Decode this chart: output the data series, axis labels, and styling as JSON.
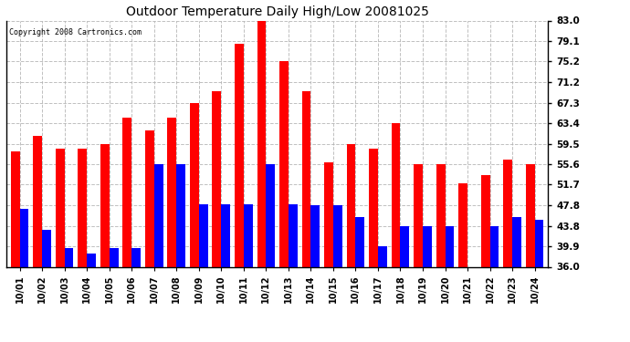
{
  "title": "Outdoor Temperature Daily High/Low 20081025",
  "copyright": "Copyright 2008 Cartronics.com",
  "dates": [
    "10/01",
    "10/02",
    "10/03",
    "10/04",
    "10/05",
    "10/06",
    "10/07",
    "10/08",
    "10/09",
    "10/10",
    "10/11",
    "10/12",
    "10/13",
    "10/14",
    "10/15",
    "10/16",
    "10/17",
    "10/18",
    "10/19",
    "10/20",
    "10/21",
    "10/22",
    "10/23",
    "10/24"
  ],
  "highs": [
    58.0,
    61.0,
    58.5,
    58.5,
    59.5,
    64.5,
    62.0,
    64.5,
    67.3,
    69.5,
    78.5,
    83.0,
    75.2,
    69.5,
    56.0,
    59.5,
    58.5,
    63.4,
    55.6,
    55.6,
    52.0,
    53.5,
    56.5,
    55.6
  ],
  "lows": [
    47.0,
    43.0,
    39.5,
    38.5,
    39.5,
    39.5,
    55.6,
    55.6,
    48.0,
    48.0,
    48.0,
    55.6,
    48.0,
    47.8,
    47.8,
    45.5,
    40.0,
    43.8,
    43.8,
    43.8,
    36.0,
    43.8,
    45.5,
    45.0
  ],
  "high_color": "#ff0000",
  "low_color": "#0000ff",
  "bg_color": "#ffffff",
  "plot_bg_color": "#ffffff",
  "grid_color": "#b0b0b0",
  "yticks": [
    36.0,
    39.9,
    43.8,
    47.8,
    51.7,
    55.6,
    59.5,
    63.4,
    67.3,
    71.2,
    75.2,
    79.1,
    83.0
  ],
  "ymin": 36.0,
  "ymax": 83.0,
  "bar_width": 0.4
}
